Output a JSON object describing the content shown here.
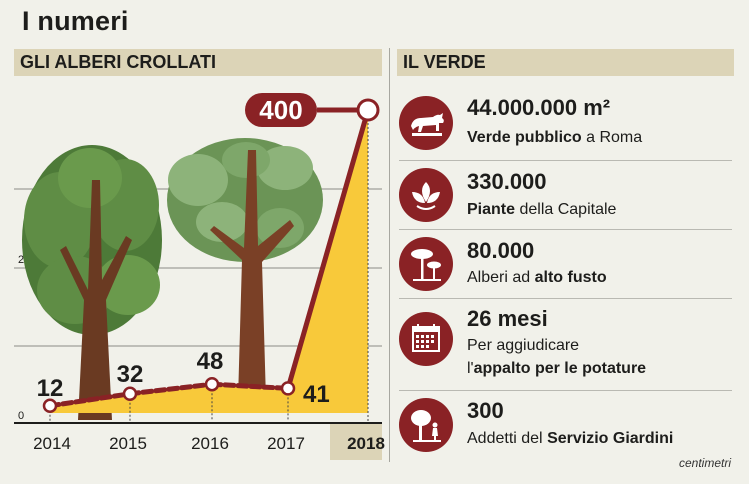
{
  "title": "I numeri",
  "left_panel": {
    "heading": "GLI ALBERI CROLLATI"
  },
  "right_panel": {
    "heading": "IL VERDE"
  },
  "chart_data": {
    "type": "area",
    "title": "GLI ALBERI CROLLATI",
    "categories": [
      "2014",
      "2015",
      "2016",
      "2017",
      "2018"
    ],
    "series": [
      {
        "values": [
          12,
          32,
          48,
          41,
          400
        ]
      }
    ],
    "value_labels": [
      "12",
      "32",
      "48",
      "41",
      "400"
    ],
    "y_tick_labels": [
      "0",
      "2"
    ],
    "ylim": [
      0,
      400
    ],
    "grid": true,
    "fill_color": "#f8c93a",
    "line_color": "#8a2225",
    "highlight_category": "2018"
  },
  "stats": [
    {
      "icon": "she-wolf-icon",
      "value": "44.000.000 m²",
      "desc_bold": "Verde pubblico",
      "desc_rest": " a Roma"
    },
    {
      "icon": "leaf-plant-icon",
      "value": "330.000",
      "desc_bold": "Piante",
      "desc_rest": " della Capitale"
    },
    {
      "icon": "pine-trees-icon",
      "value": "80.000",
      "desc_prefix": "Alberi ad ",
      "desc_bold": "alto fusto"
    },
    {
      "icon": "calendar-icon",
      "value": "26 mesi",
      "desc_line1": "Per aggiudicare",
      "desc_prefix": "l'",
      "desc_bold": "appalto per le potature"
    },
    {
      "icon": "gardener-icon",
      "value": "300",
      "desc_prefix": "Addetti del ",
      "desc_bold": "Servizio Giardini"
    }
  ],
  "credit": "centimetri",
  "colors": {
    "accent": "#8a2225",
    "header_bg": "#dcd4b7",
    "background": "#f1f1ea",
    "area_fill": "#f8c93a"
  }
}
